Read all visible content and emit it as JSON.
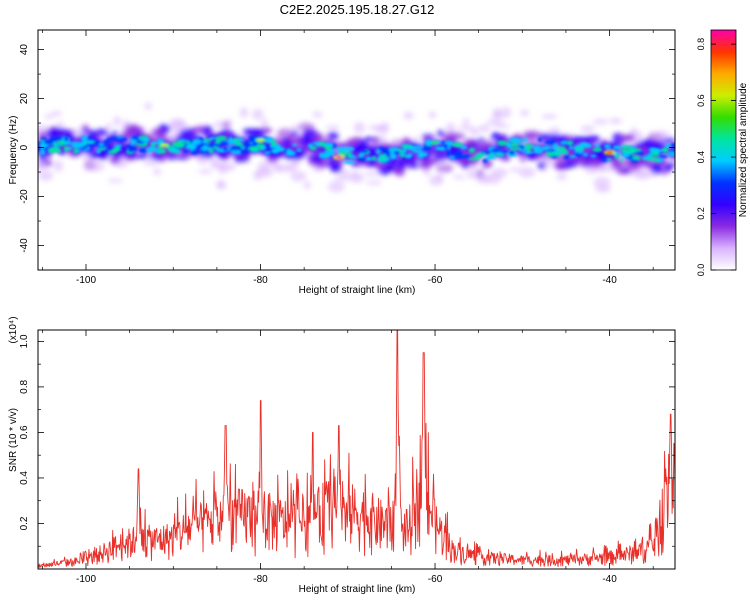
{
  "title": "C2E2.2025.195.18.27.G12",
  "chart_data": [
    {
      "type": "heatmap",
      "xlabel": "Height of straight line (km)",
      "ylabel": "Frequency (Hz)",
      "xlim": [
        -105.5,
        -32.5
      ],
      "ylim": [
        -50,
        48
      ],
      "xticks": [
        -100,
        -80,
        -60,
        -40
      ],
      "yticks": [
        -40,
        -20,
        0,
        20,
        40
      ],
      "colorbar": {
        "label": "Normalized spectral amplitude",
        "range": [
          0.0,
          0.85
        ],
        "ticks": [
          0.0,
          0.2,
          0.4,
          0.6,
          0.8
        ],
        "colors": [
          "#ffffff",
          "#d9b3ff",
          "#8a2be2",
          "#3300ff",
          "#0033ff",
          "#00ccff",
          "#00e5a0",
          "#33dd00",
          "#ccee00",
          "#ffaa00",
          "#ff3300",
          "#ff00aa"
        ]
      },
      "ridge": {
        "x": [
          -105,
          -100,
          -95,
          -90,
          -85,
          -80,
          -75,
          -70,
          -65,
          -60,
          -55,
          -50,
          -45,
          -40,
          -35,
          -33
        ],
        "center_freq": [
          1,
          1,
          1,
          1,
          1,
          1,
          0,
          -3,
          -3,
          0,
          -3,
          1,
          -1,
          -2,
          -3,
          -2
        ],
        "peaks": [
          {
            "x": -91,
            "y": 1,
            "amp": 0.6
          },
          {
            "x": -80,
            "y": 3,
            "amp": 0.6
          },
          {
            "x": -71,
            "y": -4,
            "amp": 0.82
          },
          {
            "x": -66,
            "y": -5,
            "amp": 0.5
          },
          {
            "x": -60,
            "y": 2,
            "amp": 0.55
          },
          {
            "x": -40,
            "y": -2,
            "amp": 0.78
          }
        ]
      },
      "grid": false
    },
    {
      "type": "line",
      "xlabel": "Height of straight line (km)",
      "ylabel": "SNR (10 * v/v)",
      "multiplier": "(x10⁴)",
      "xlim": [
        -105.5,
        -32.5
      ],
      "ylim": [
        0,
        1.05
      ],
      "xticks": [
        -100,
        -80,
        -60,
        -40
      ],
      "yticks": [
        0.2,
        0.4,
        0.6,
        0.8,
        1.0
      ],
      "series": [
        {
          "color": "#e8302a",
          "envelope": {
            "x": [
              -105.5,
              -100,
              -97,
              -94,
              -92,
              -90,
              -88,
              -86,
              -84,
              -82,
              -80,
              -78,
              -76,
              -74,
              -72,
              -70,
              -68,
              -66,
              -64.5,
              -63,
              -61.5,
              -60,
              -58,
              -55,
              -50,
              -45,
              -40,
              -37,
              -35,
              -34,
              -33.5,
              -32.5
            ],
            "y": [
              0.02,
              0.06,
              0.14,
              0.2,
              0.19,
              0.21,
              0.28,
              0.3,
              0.34,
              0.36,
              0.35,
              0.32,
              0.3,
              0.33,
              0.42,
              0.38,
              0.36,
              0.3,
              0.3,
              0.26,
              0.58,
              0.3,
              0.13,
              0.08,
              0.06,
              0.06,
              0.08,
              0.11,
              0.16,
              0.3,
              0.5,
              0.62
            ]
          },
          "peaks": [
            {
              "x": -94,
              "y": 0.44
            },
            {
              "x": -84,
              "y": 0.63
            },
            {
              "x": -80,
              "y": 0.74
            },
            {
              "x": -74,
              "y": 0.6
            },
            {
              "x": -71,
              "y": 0.63
            },
            {
              "x": -64.3,
              "y": 1.05
            },
            {
              "x": -61.3,
              "y": 0.95
            },
            {
              "x": -33,
              "y": 0.68
            }
          ]
        }
      ],
      "grid": false
    }
  ]
}
